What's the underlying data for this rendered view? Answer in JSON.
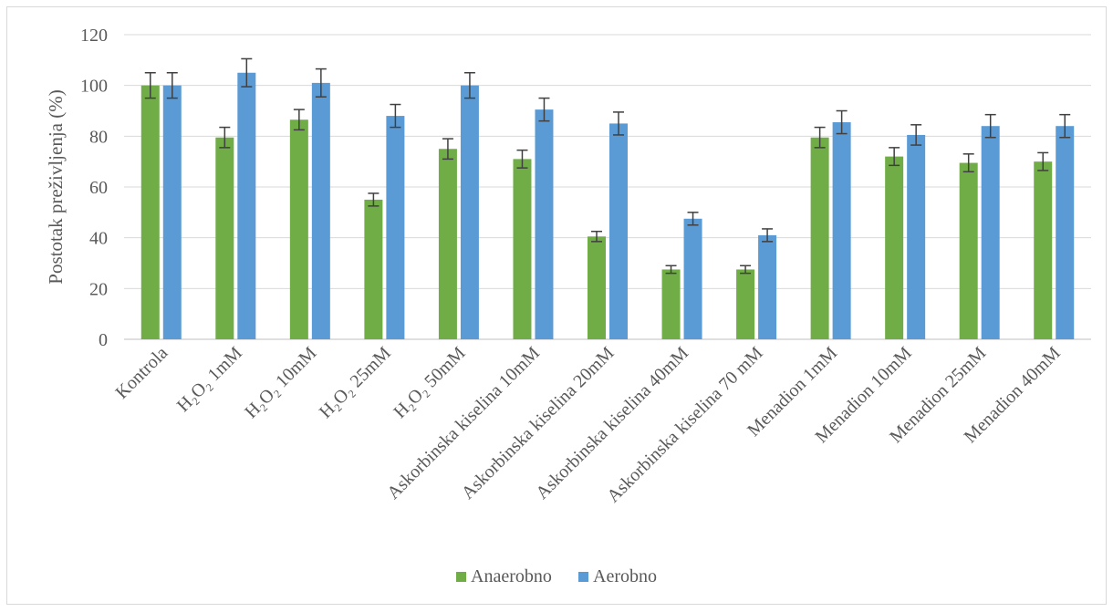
{
  "chart_data": {
    "type": "bar",
    "title": "",
    "xlabel": "",
    "ylabel": "Postotak preživljenja (%)",
    "ylim": [
      0,
      120
    ],
    "yticks": [
      0,
      20,
      40,
      60,
      80,
      100,
      120
    ],
    "grid": true,
    "legend_position": "bottom",
    "categories": [
      "Kontrola",
      "H₂O₂ 1mM",
      "H₂O₂ 10mM",
      "H₂O₂ 25mM",
      "H₂O₂ 50mM",
      "Askorbinska kiselina 10mM",
      "Askorbinska kiselina 20mM",
      "Askorbinska kiselina 40mM",
      "Askorbinska kiselina 70 mM",
      "Menadion 1mM",
      "Menadion 10mM",
      "Menadion 25mM",
      "Menadion 40mM"
    ],
    "series": [
      {
        "name": "Anaerobno",
        "color": "#70ad47",
        "values": [
          100,
          79.5,
          86.5,
          55,
          75,
          71,
          40.5,
          27.5,
          27.5,
          79.5,
          72,
          69.5,
          70
        ],
        "errors": [
          5,
          4,
          4,
          2.5,
          4,
          3.5,
          2,
          1.5,
          1.5,
          4,
          3.5,
          3.5,
          3.5
        ]
      },
      {
        "name": "Aerobno",
        "color": "#5b9bd5",
        "values": [
          100,
          105,
          101,
          88,
          100,
          90.5,
          85,
          47.5,
          41,
          85.5,
          80.5,
          84,
          84
        ],
        "errors": [
          5,
          5.5,
          5.5,
          4.5,
          5,
          4.5,
          4.5,
          2.5,
          2.5,
          4.5,
          4,
          4.5,
          4.5
        ]
      }
    ]
  }
}
